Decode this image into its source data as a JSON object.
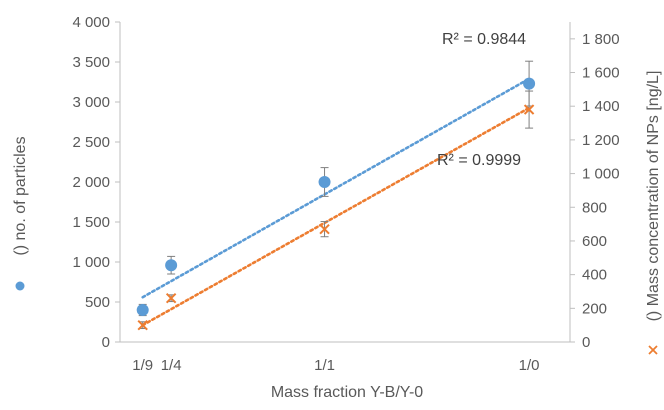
{
  "chart_data": {
    "type": "scatter",
    "xlabel": "Mass fraction Y-B/Y-0",
    "x_categories": [
      "1/9",
      "1/4",
      "1/1",
      "1/0"
    ],
    "x_values": [
      0.111,
      0.25,
      1.0,
      2.0
    ],
    "ylabel_left": "no. of particles",
    "ylabel_right": "Mass concentration of NPs [ng/L]",
    "ylim_left": [
      0,
      4000
    ],
    "ylim_right": [
      0,
      1900
    ],
    "yticks_left": [
      "0",
      "500",
      "1 000",
      "1 500",
      "2 000",
      "2 500",
      "3 000",
      "3 500",
      "4 000"
    ],
    "yticks_right": [
      "0",
      "200",
      "400",
      "600",
      "800",
      "1 000",
      "1 200",
      "1 400",
      "1 600",
      "1 800"
    ],
    "grid": false,
    "colors": {
      "blue": "#5b9bd5",
      "orange": "#ed7d31",
      "axis": "#bfbfbf",
      "error": "#7f7f7f"
    },
    "series": [
      {
        "axis": "left",
        "marker": "circle",
        "y": [
          400,
          960,
          2000,
          3230
        ],
        "err": [
          70,
          110,
          180,
          280
        ],
        "trend": [
          560,
          3290
        ],
        "r2": "R² = 0.9844"
      },
      {
        "axis": "right",
        "marker": "x",
        "y": [
          100,
          260,
          670,
          1380
        ],
        "err": [
          20,
          20,
          45,
          110
        ],
        "trend": [
          100,
          1390
        ],
        "r2": "R² = 0.9999"
      }
    ]
  }
}
